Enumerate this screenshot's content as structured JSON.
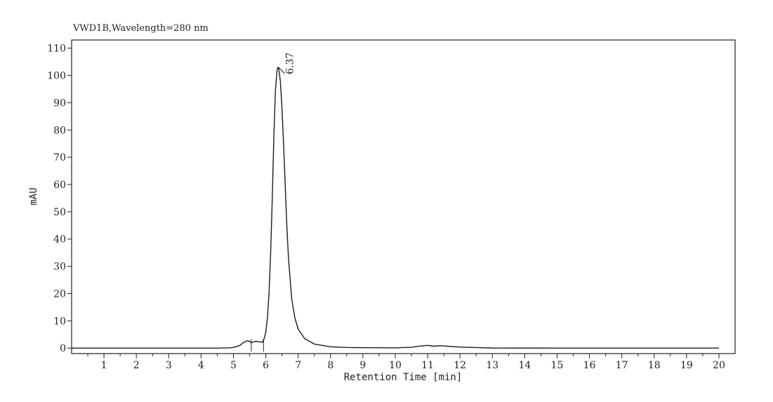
{
  "chart_data": {
    "type": "line",
    "title": "VWD1B,Wavelength=280 nm",
    "xlabel": "Retention Time [min]",
    "ylabel": "mAU",
    "xlim": [
      0,
      20.5
    ],
    "ylim": [
      -2,
      113
    ],
    "x_ticks": [
      1,
      2,
      3,
      4,
      5,
      6,
      7,
      8,
      9,
      10,
      11,
      12,
      13,
      14,
      15,
      16,
      17,
      18,
      19,
      20
    ],
    "y_ticks": [
      0,
      10,
      20,
      30,
      40,
      50,
      60,
      70,
      80,
      90,
      100,
      110
    ],
    "grid": false,
    "series": [
      {
        "color": "#1a1a2e",
        "x": [
          0,
          4.5,
          4.9,
          5.05,
          5.2,
          5.3,
          5.4,
          5.45,
          5.5,
          5.55,
          5.6,
          5.65,
          5.7,
          5.8,
          5.9,
          5.95,
          6.0,
          6.05,
          6.1,
          6.15,
          6.2,
          6.25,
          6.3,
          6.35,
          6.37,
          6.4,
          6.45,
          6.5,
          6.55,
          6.6,
          6.65,
          6.7,
          6.8,
          6.9,
          7.0,
          7.2,
          7.5,
          8.0,
          8.5,
          9.0,
          10.0,
          10.5,
          10.8,
          11.0,
          11.2,
          11.4,
          11.6,
          12.0,
          12.5,
          13.0,
          15.0,
          20.0
        ],
        "y": [
          0,
          0,
          0.1,
          0.4,
          1.0,
          2.0,
          2.6,
          2.7,
          2.5,
          2.0,
          2.2,
          2.4,
          2.5,
          2.3,
          2.2,
          3.5,
          6.0,
          11.0,
          20.0,
          35.0,
          55.0,
          78.0,
          95.0,
          102.0,
          103.0,
          102.5,
          98.0,
          88.0,
          75.0,
          60.0,
          45.0,
          33.0,
          18.0,
          11.0,
          7.0,
          3.5,
          1.5,
          0.5,
          0.25,
          0.15,
          0.1,
          0.3,
          0.8,
          1.0,
          0.7,
          0.9,
          0.7,
          0.4,
          0.2,
          0.05,
          0.0,
          0.0
        ]
      }
    ],
    "peak_labels": [
      {
        "x": 6.37,
        "y": 103,
        "text": "6.37"
      }
    ],
    "baseline_marks": [
      {
        "x": 5.55,
        "y": 2.3
      },
      {
        "x": 5.93,
        "y": 2.3
      }
    ]
  }
}
